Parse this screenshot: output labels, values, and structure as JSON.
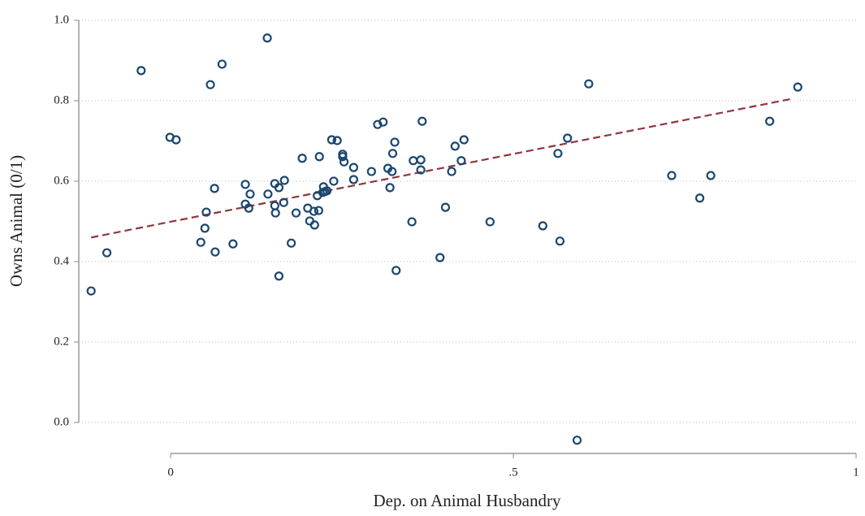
{
  "chart_data": {
    "type": "scatter",
    "x_label": "Dep. on Animal Husbandry",
    "y_label": "Owns Animal (0/1)",
    "x": [
      -0.116,
      -0.093,
      -0.043,
      -0.001,
      0.008,
      0.075,
      0.058,
      0.141,
      0.044,
      0.05,
      0.052,
      0.064,
      0.065,
      0.091,
      0.109,
      0.109,
      0.114,
      0.116,
      0.142,
      0.152,
      0.152,
      0.153,
      0.158,
      0.158,
      0.165,
      0.166,
      0.176,
      0.183,
      0.192,
      0.2,
      0.203,
      0.209,
      0.21,
      0.214,
      0.216,
      0.217,
      0.222,
      0.223,
      0.225,
      0.228,
      0.235,
      0.238,
      0.243,
      0.251,
      0.251,
      0.253,
      0.267,
      0.267,
      0.293,
      0.302,
      0.31,
      0.317,
      0.32,
      0.323,
      0.324,
      0.327,
      0.329,
      0.352,
      0.354,
      0.365,
      0.365,
      0.367,
      0.393,
      0.401,
      0.41,
      0.415,
      0.424,
      0.428,
      0.466,
      0.543,
      0.565,
      0.568,
      0.579,
      0.593,
      0.61,
      0.731,
      0.772,
      0.788,
      0.874,
      0.915
    ],
    "values": [
      0.327,
      0.422,
      0.875,
      0.709,
      0.703,
      0.891,
      0.84,
      0.956,
      0.448,
      0.483,
      0.523,
      0.582,
      0.424,
      0.444,
      0.592,
      0.543,
      0.533,
      0.568,
      0.568,
      0.539,
      0.594,
      0.521,
      0.584,
      0.364,
      0.547,
      0.602,
      0.446,
      0.521,
      0.657,
      0.533,
      0.501,
      0.525,
      0.491,
      0.564,
      0.527,
      0.661,
      0.572,
      0.586,
      0.574,
      0.576,
      0.703,
      0.6,
      0.701,
      0.667,
      0.661,
      0.648,
      0.634,
      0.604,
      0.624,
      0.741,
      0.747,
      0.632,
      0.584,
      0.624,
      0.669,
      0.697,
      0.378,
      0.499,
      0.651,
      0.653,
      0.628,
      0.749,
      0.41,
      0.535,
      0.624,
      0.687,
      0.651,
      0.703,
      0.499,
      0.489,
      0.669,
      0.451,
      0.707,
      -0.044,
      0.842,
      0.614,
      0.558,
      0.614,
      0.749,
      0.834
    ],
    "color": "#1a476f",
    "fit": {
      "x": [
        -0.116,
        0.907
      ],
      "values": [
        0.46,
        0.805
      ],
      "color": "#90353b"
    },
    "xlim": [
      -0.134,
      1.0
    ],
    "ylim": [
      -0.077,
      1.0
    ],
    "xticks": [
      0,
      {
        "value": 0.5,
        "label": ".5"
      },
      1
    ],
    "yticks": [
      {
        "value": 0,
        "label": "0.0"
      },
      0.2,
      0.4,
      0.6,
      0.8,
      {
        "value": 1,
        "label": "1.0"
      }
    ],
    "grid": true
  }
}
